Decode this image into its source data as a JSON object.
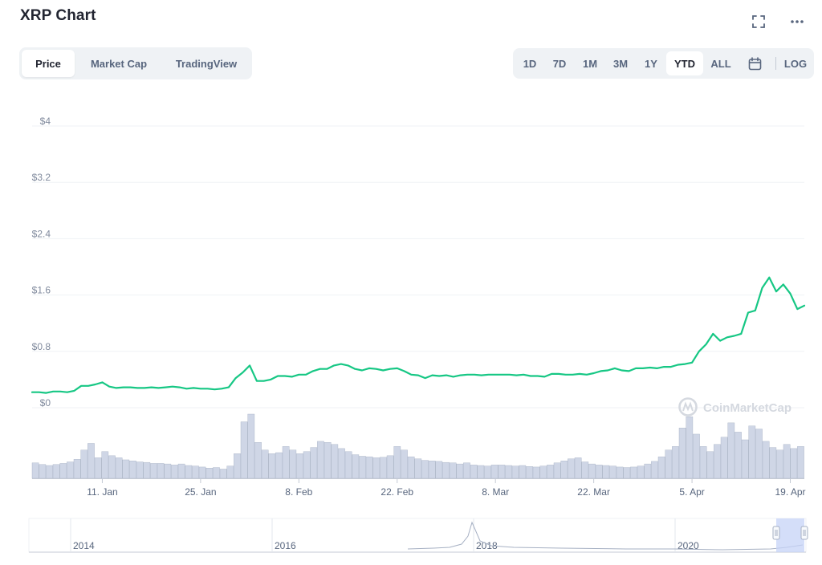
{
  "header": {
    "title": "XRP Chart"
  },
  "tabs": [
    {
      "label": "Price",
      "active": true
    },
    {
      "label": "Market Cap",
      "active": false
    },
    {
      "label": "TradingView",
      "active": false
    }
  ],
  "ranges": [
    {
      "label": "1D",
      "active": false
    },
    {
      "label": "7D",
      "active": false
    },
    {
      "label": "1M",
      "active": false
    },
    {
      "label": "3M",
      "active": false
    },
    {
      "label": "1Y",
      "active": false
    },
    {
      "label": "YTD",
      "active": true
    },
    {
      "label": "ALL",
      "active": false
    }
  ],
  "log_label": "LOG",
  "icons": {
    "fullscreen": "fullscreen-icon",
    "more": "more-icon",
    "calendar": "calendar-icon"
  },
  "watermark": "CoinMarketCap",
  "colors": {
    "price_line": "#16c784",
    "volume_bar": "#cfd6e6",
    "volume_bar_stroke": "#a6b0c3",
    "navigator_selection": "#c5d3f7"
  },
  "chart_data": {
    "type": "line",
    "title": "",
    "ylabel": "",
    "xlabel": "",
    "ylim": [
      0,
      4
    ],
    "y_ticks": [
      "$0",
      "$0.8",
      "$1.6",
      "$2.4",
      "$3.2",
      "$4"
    ],
    "y_tick_values": [
      0,
      0.8,
      1.6,
      2.4,
      3.2,
      4
    ],
    "x_tick_labels": [
      "11. Jan",
      "25. Jan",
      "8. Feb",
      "22. Feb",
      "8. Mar",
      "22. Mar",
      "5. Apr",
      "19. Apr"
    ],
    "x_tick_days": [
      10,
      24,
      38,
      52,
      66,
      80,
      94,
      108
    ],
    "x_range_days": [
      0,
      110
    ],
    "grid": true,
    "series": [
      {
        "values_day": [
          0,
          1,
          2,
          3,
          4,
          5,
          6,
          7,
          8,
          9,
          10,
          11,
          12,
          13,
          14,
          15,
          16,
          17,
          18,
          19,
          20,
          21,
          22,
          23,
          24,
          25,
          26,
          27,
          28,
          29,
          30,
          31,
          32,
          33,
          34,
          35,
          36,
          37,
          38,
          39,
          40,
          41,
          42,
          43,
          44,
          45,
          46,
          47,
          48,
          49,
          50,
          51,
          52,
          53,
          54,
          55,
          56,
          57,
          58,
          59,
          60,
          61,
          62,
          63,
          64,
          65,
          66,
          67,
          68,
          69,
          70,
          71,
          72,
          73,
          74,
          75,
          76,
          77,
          78,
          79,
          80,
          81,
          82,
          83,
          84,
          85,
          86,
          87,
          88,
          89,
          90,
          91,
          92,
          93,
          94,
          95,
          96,
          97,
          98,
          99,
          100,
          101,
          102,
          103,
          104,
          105,
          106,
          107,
          108,
          109,
          110
        ],
        "values": [
          0.22,
          0.22,
          0.21,
          0.23,
          0.23,
          0.22,
          0.24,
          0.31,
          0.31,
          0.33,
          0.36,
          0.3,
          0.28,
          0.29,
          0.29,
          0.28,
          0.28,
          0.29,
          0.28,
          0.29,
          0.3,
          0.29,
          0.27,
          0.28,
          0.27,
          0.27,
          0.26,
          0.27,
          0.29,
          0.42,
          0.5,
          0.6,
          0.38,
          0.38,
          0.4,
          0.45,
          0.45,
          0.44,
          0.47,
          0.47,
          0.52,
          0.55,
          0.55,
          0.6,
          0.62,
          0.6,
          0.55,
          0.53,
          0.56,
          0.55,
          0.53,
          0.55,
          0.56,
          0.52,
          0.47,
          0.46,
          0.42,
          0.46,
          0.45,
          0.46,
          0.44,
          0.46,
          0.47,
          0.47,
          0.46,
          0.47,
          0.47,
          0.47,
          0.47,
          0.46,
          0.47,
          0.45,
          0.45,
          0.44,
          0.48,
          0.48,
          0.47,
          0.47,
          0.48,
          0.47,
          0.49,
          0.52,
          0.53,
          0.56,
          0.53,
          0.52,
          0.56,
          0.56,
          0.57,
          0.56,
          0.58,
          0.58,
          0.61,
          0.62,
          0.64,
          0.8,
          0.9,
          1.05,
          0.95,
          1.0,
          1.02,
          1.05,
          1.35,
          1.38,
          1.7,
          1.85,
          1.65,
          1.75,
          1.62,
          1.4,
          1.45
        ]
      }
    ],
    "volume": [
      30,
      27,
      25,
      27,
      29,
      32,
      37,
      55,
      68,
      40,
      52,
      44,
      40,
      36,
      34,
      32,
      31,
      29,
      29,
      28,
      26,
      28,
      25,
      24,
      22,
      20,
      21,
      18,
      24,
      48,
      110,
      125,
      70,
      55,
      48,
      50,
      62,
      55,
      48,
      52,
      60,
      72,
      70,
      66,
      58,
      52,
      46,
      43,
      42,
      40,
      41,
      44,
      62,
      55,
      42,
      38,
      35,
      34,
      33,
      31,
      30,
      28,
      30,
      26,
      25,
      24,
      26,
      26,
      25,
      24,
      25,
      23,
      22,
      24,
      26,
      30,
      34,
      38,
      40,
      32,
      28,
      26,
      25,
      24,
      22,
      21,
      22,
      24,
      28,
      33,
      42,
      55,
      62,
      98,
      120,
      86,
      62,
      52,
      66,
      80,
      108,
      90,
      75,
      102,
      96,
      72,
      60,
      55,
      66,
      58,
      62
    ],
    "navigator": {
      "labels": [
        "2014",
        "2016",
        "2018",
        "2020"
      ]
    }
  }
}
